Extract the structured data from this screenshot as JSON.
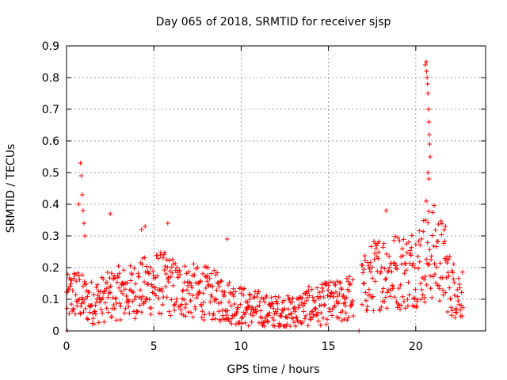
{
  "chart_data": {
    "type": "scatter",
    "title": "Day 065 of 2018, SRMTID for receiver sjsp",
    "xlabel": "GPS time / hours",
    "ylabel": "SRMTID / TECUs",
    "xlim": [
      0,
      24
    ],
    "ylim": [
      0,
      0.9
    ],
    "xticks": [
      0,
      5,
      10,
      15,
      20
    ],
    "xtick_labels": [
      "0",
      "5",
      "10",
      "15",
      "20"
    ],
    "yticks": [
      0,
      0.1,
      0.2,
      0.3,
      0.4,
      0.5,
      0.6,
      0.7,
      0.8,
      0.9
    ],
    "ytick_labels": [
      "0",
      "0.1",
      "0.2",
      "0.3",
      "0.4",
      "0.5",
      "0.6",
      "0.7",
      "0.8",
      "0.9"
    ],
    "grid": true,
    "marker": "+",
    "color": "#ff0000",
    "series": [
      {
        "name": "SRMTID",
        "trend": [
          [
            0.0,
            0.1
          ],
          [
            0.5,
            0.12
          ],
          [
            1.0,
            0.1
          ],
          [
            1.5,
            0.09
          ],
          [
            2.0,
            0.1
          ],
          [
            2.5,
            0.11
          ],
          [
            3.0,
            0.12
          ],
          [
            3.5,
            0.12
          ],
          [
            4.0,
            0.13
          ],
          [
            4.5,
            0.14
          ],
          [
            5.0,
            0.15
          ],
          [
            5.5,
            0.15
          ],
          [
            6.0,
            0.14
          ],
          [
            6.5,
            0.13
          ],
          [
            7.0,
            0.13
          ],
          [
            7.5,
            0.12
          ],
          [
            8.0,
            0.12
          ],
          [
            8.5,
            0.11
          ],
          [
            9.0,
            0.1
          ],
          [
            9.5,
            0.09
          ],
          [
            10.0,
            0.08
          ],
          [
            10.5,
            0.07
          ],
          [
            11.0,
            0.07
          ],
          [
            11.5,
            0.06
          ],
          [
            12.0,
            0.06
          ],
          [
            12.5,
            0.06
          ],
          [
            13.0,
            0.06
          ],
          [
            13.5,
            0.07
          ],
          [
            14.0,
            0.08
          ],
          [
            14.5,
            0.08
          ],
          [
            15.0,
            0.09
          ],
          [
            15.5,
            0.09
          ],
          [
            16.0,
            0.1
          ],
          [
            16.5,
            0.11
          ],
          [
            16.8,
            0.12
          ],
          [
            17.0,
            0.14
          ],
          [
            17.5,
            0.17
          ],
          [
            18.0,
            0.19
          ],
          [
            18.5,
            0.19
          ],
          [
            19.0,
            0.19
          ],
          [
            19.5,
            0.19
          ],
          [
            20.0,
            0.21
          ],
          [
            20.5,
            0.23
          ],
          [
            21.0,
            0.25
          ],
          [
            21.5,
            0.22
          ],
          [
            22.0,
            0.14
          ],
          [
            22.5,
            0.12
          ],
          [
            22.7,
            0.12
          ]
        ],
        "spikes": [
          [
            0.05,
            0.0
          ],
          [
            0.7,
            0.4
          ],
          [
            0.8,
            0.53
          ],
          [
            0.85,
            0.49
          ],
          [
            0.9,
            0.43
          ],
          [
            0.95,
            0.38
          ],
          [
            1.0,
            0.34
          ],
          [
            1.05,
            0.3
          ],
          [
            2.5,
            0.37
          ],
          [
            4.3,
            0.32
          ],
          [
            4.5,
            0.33
          ],
          [
            5.8,
            0.34
          ],
          [
            9.2,
            0.29
          ],
          [
            18.3,
            0.38
          ],
          [
            16.75,
            0.0
          ],
          [
            20.55,
            0.84
          ],
          [
            20.6,
            0.85
          ],
          [
            20.62,
            0.82
          ],
          [
            20.65,
            0.8
          ],
          [
            20.68,
            0.78
          ],
          [
            20.7,
            0.75
          ],
          [
            20.72,
            0.7
          ],
          [
            20.75,
            0.66
          ],
          [
            20.78,
            0.62
          ],
          [
            20.8,
            0.59
          ],
          [
            20.82,
            0.55
          ],
          [
            20.7,
            0.5
          ],
          [
            20.75,
            0.48
          ],
          [
            20.6,
            0.41
          ],
          [
            21.7,
            0.33
          ]
        ]
      }
    ]
  }
}
